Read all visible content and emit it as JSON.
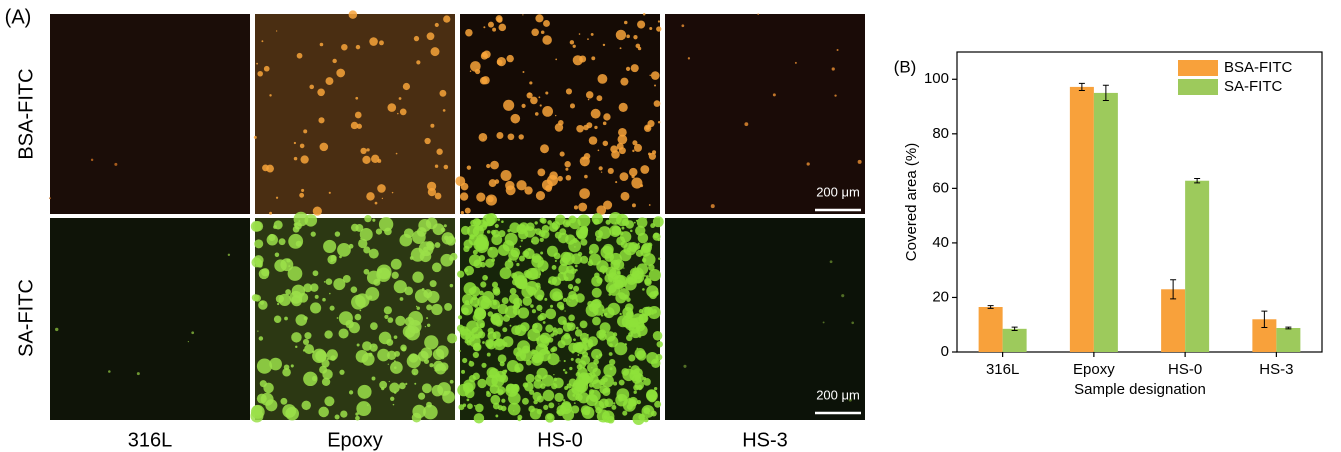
{
  "figure_a": {
    "label": "(A)",
    "rows": [
      "BSA-FITC",
      "SA-FITC"
    ],
    "columns": [
      "316L",
      "Epoxy",
      "HS-0",
      "HS-3"
    ],
    "scale_bars": [
      "200 μm",
      "200 μm"
    ]
  },
  "chart_data": {
    "type": "bar",
    "panel_label": "(B)",
    "y_label": "Covered area (%)",
    "x_label": "Sample designation",
    "categories": [
      "316L",
      "Epoxy",
      "HS-0",
      "HS-3"
    ],
    "series": [
      {
        "name": "BSA-FITC",
        "color": "#f8a13b",
        "values": [
          16.5,
          97.2,
          23,
          12
        ],
        "errors": [
          0.5,
          1.3,
          3.5,
          3
        ]
      },
      {
        "name": "SA-FITC",
        "color": "#9dca5c",
        "values": [
          8.5,
          95,
          62.8,
          8.8
        ],
        "errors": [
          0.6,
          2.8,
          0.8,
          0.3
        ]
      }
    ],
    "ylim": [
      0,
      110
    ],
    "yticks": [
      0,
      20,
      40,
      60,
      80,
      100
    ],
    "legend": "upper right"
  }
}
